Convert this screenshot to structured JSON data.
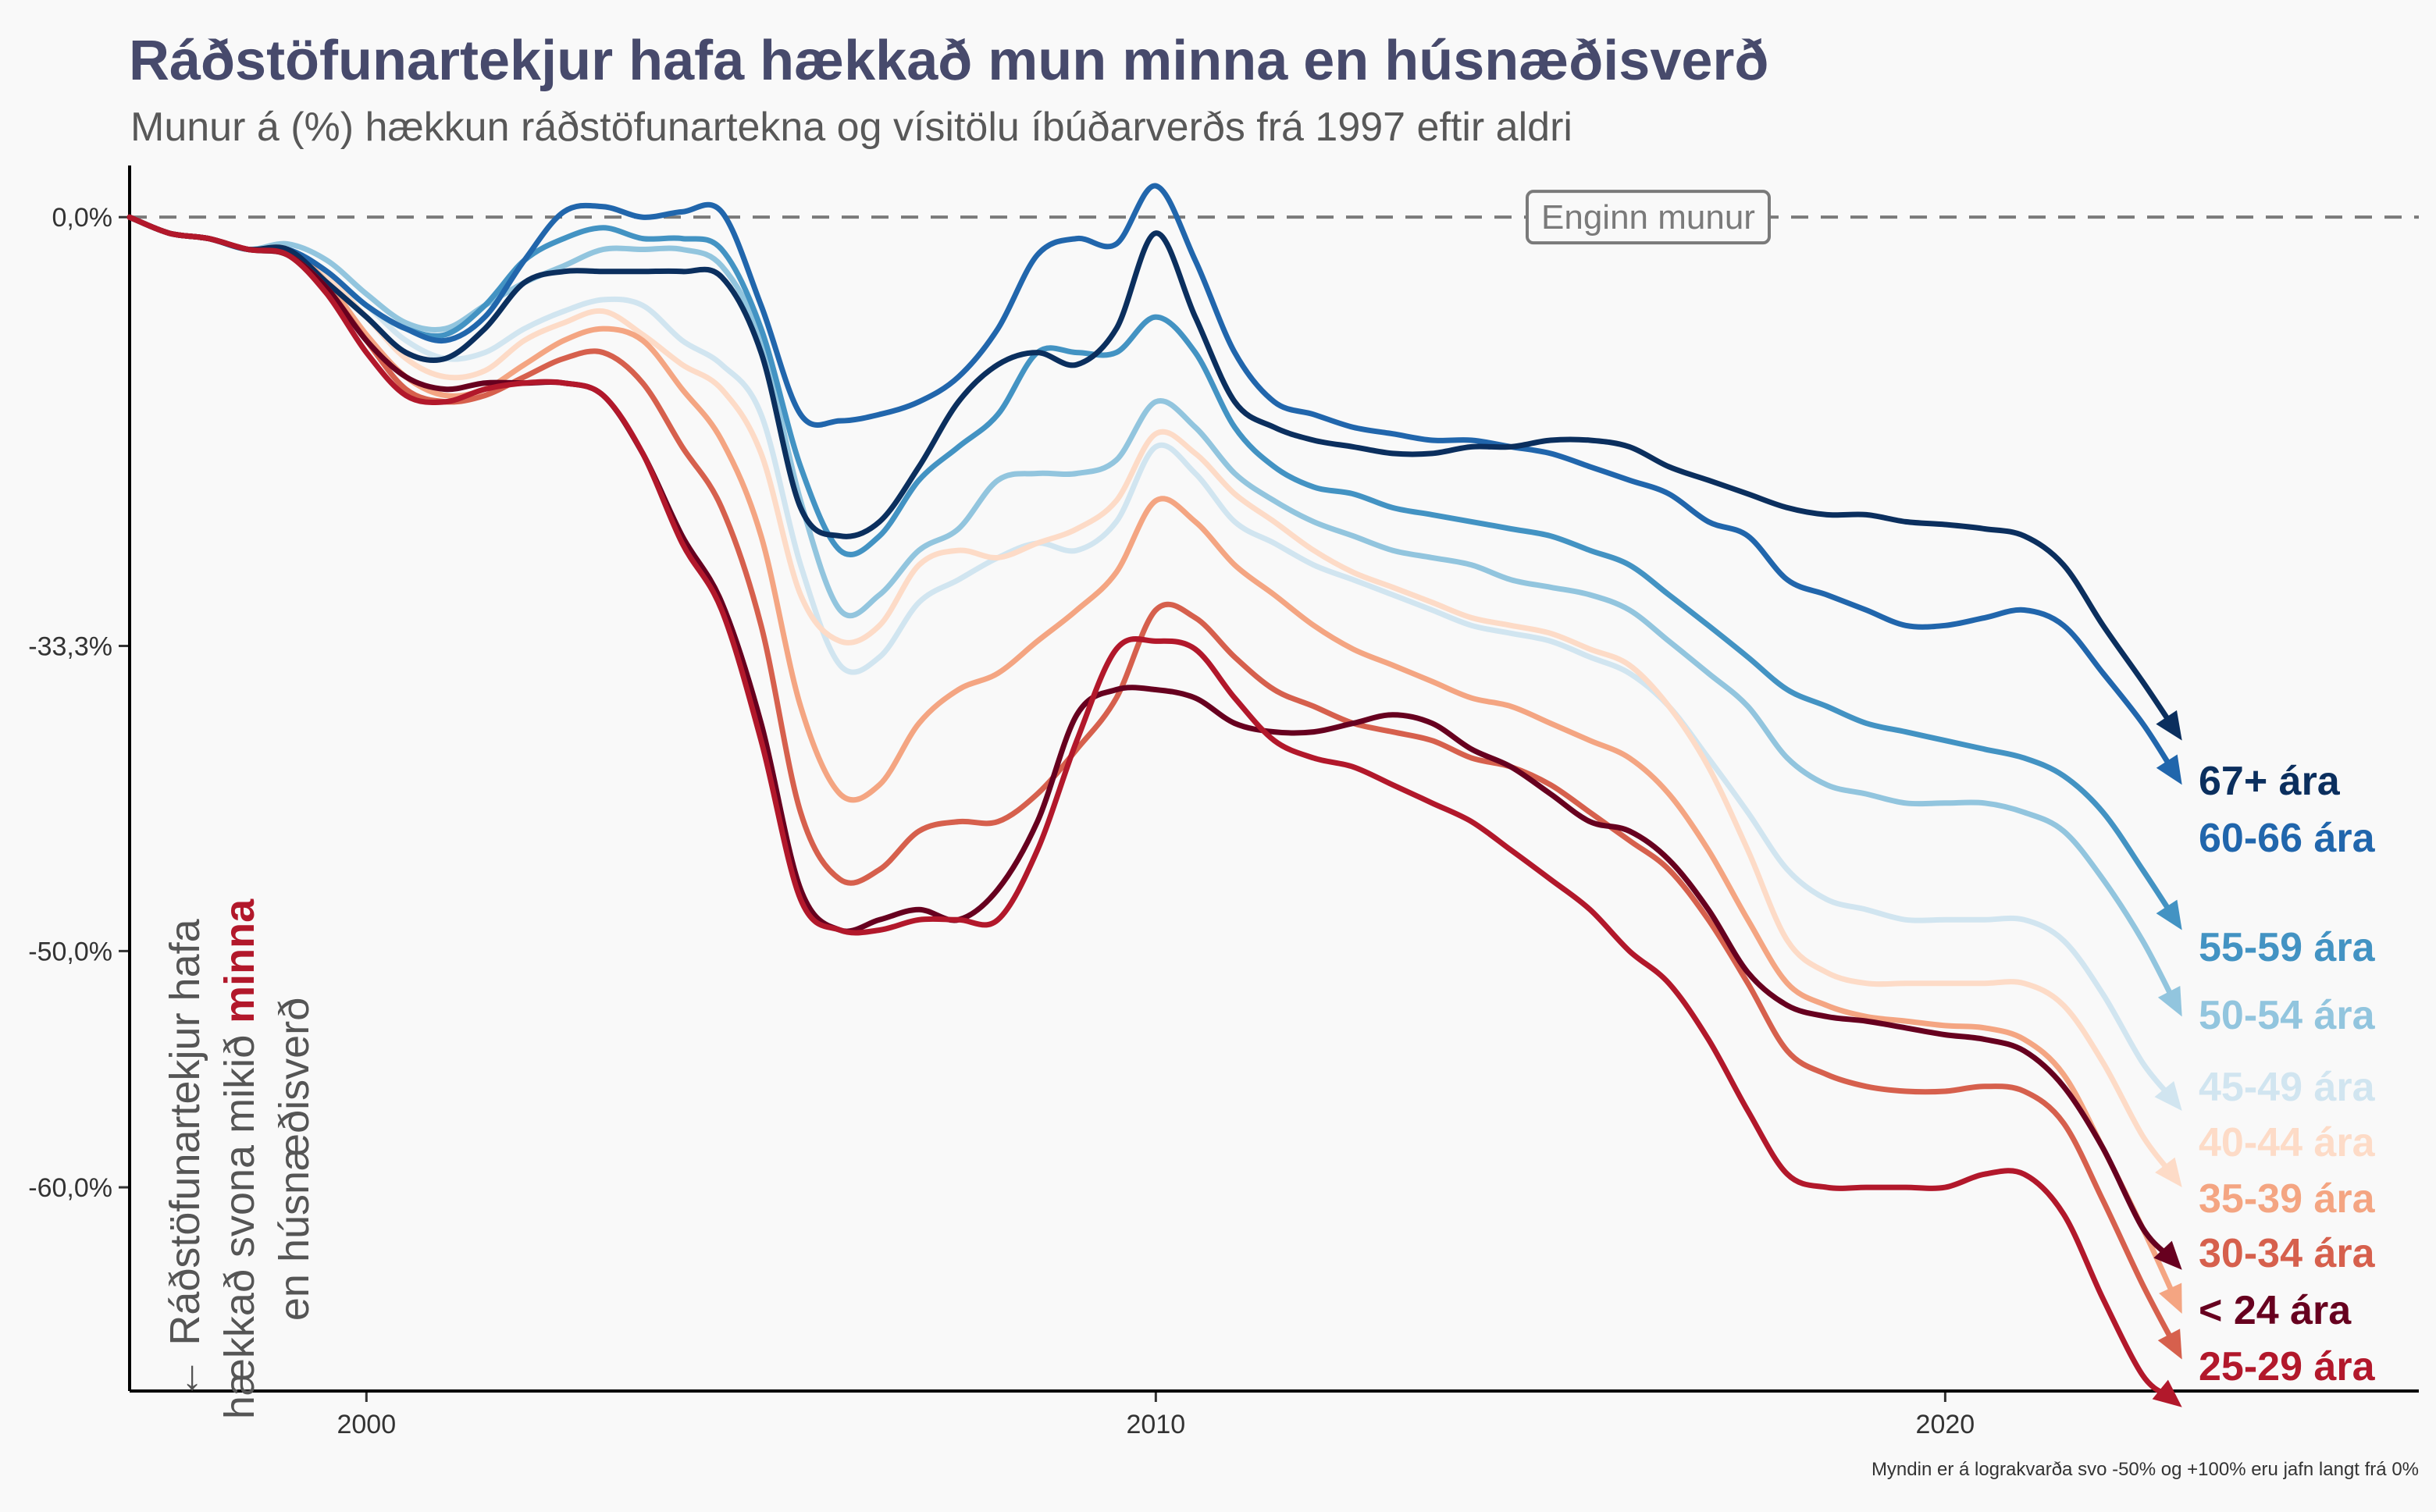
{
  "chart_data": {
    "type": "line",
    "title": "Ráðstöfunartekjur hafa hækkað mun minna en húsnæðisverð",
    "subtitle": "Munur á (%) hækkun ráðstöfunartekna og vísitölu íbúðarverðs frá 1997 eftir aldri",
    "caption": "Myndin er á lograkvarða svo -50% og +100% eru jafn langt frá 0%",
    "xlabel": "",
    "ylabel": "",
    "scale": "log",
    "x_ticks": [
      2000,
      2010,
      2020
    ],
    "y_ticks": [
      {
        "value": 0,
        "label": "0,0%"
      },
      {
        "value": -33.3,
        "label": "-33,3%"
      },
      {
        "value": -50,
        "label": "-50,0%"
      },
      {
        "value": -60,
        "label": "-60,0%"
      }
    ],
    "xlim": [
      1997,
      2026
    ],
    "ylim": [
      -67,
      5
    ],
    "reference_line": {
      "value": 0,
      "label": "Enginn munur"
    },
    "annotation": {
      "line1": "← Ráðstöfunartekjur hafa",
      "line2_a": "hækkað svona mikið ",
      "line2_b": "minna",
      "line3": "en húsnæðisverð"
    },
    "series": [
      {
        "name": "67+ ára",
        "color": "#0b2f5e",
        "x": [
          1997,
          1997.5,
          1998,
          1998.5,
          1999,
          1999.5,
          2000,
          2000.5,
          2001,
          2001.5,
          2002,
          2002.5,
          2003,
          2003.5,
          2004,
          2004.5,
          2005,
          2005.5,
          2006,
          2006.5,
          2007,
          2007.5,
          2008,
          2008.5,
          2009,
          2009.5,
          2010,
          2010.5,
          2011,
          2011.5,
          2012,
          2012.5,
          2013,
          2013.5,
          2014,
          2014.5,
          2015,
          2015.5,
          2016,
          2016.5,
          2017,
          2017.5,
          2018,
          2018.5,
          2019,
          2019.5,
          2020,
          2020.5,
          2021,
          2021.5,
          2022,
          2022.5,
          2023
        ],
        "values": [
          0,
          -1.5,
          -2,
          -3,
          -3,
          -6,
          -9,
          -12,
          -12.5,
          -10,
          -6,
          -5,
          -5,
          -5,
          -5,
          -5.5,
          -12,
          -24,
          -26,
          -25,
          -21,
          -16,
          -13,
          -12,
          -13,
          -10,
          -1.5,
          -9,
          -16,
          -18,
          -19,
          -19.5,
          -20,
          -20,
          -19.5,
          -19.5,
          -19,
          -19,
          -19.5,
          -21,
          -22,
          -23,
          -24,
          -24.5,
          -24.5,
          -25,
          -25.2,
          -25.5,
          -26,
          -28,
          -32,
          -35.5,
          -39
        ]
      },
      {
        "name": "60-66 ára",
        "color": "#2166ac",
        "x": [
          1997,
          1997.5,
          1998,
          1998.5,
          1999,
          1999.5,
          2000,
          2000.5,
          2001,
          2001.5,
          2002,
          2002.5,
          2003,
          2003.5,
          2004,
          2004.5,
          2005,
          2005.5,
          2006,
          2006.5,
          2007,
          2007.5,
          2008,
          2008.5,
          2009,
          2009.5,
          2010,
          2010.5,
          2011,
          2011.5,
          2012,
          2012.5,
          2013,
          2013.5,
          2014,
          2014.5,
          2015,
          2015.5,
          2016,
          2016.5,
          2017,
          2017.5,
          2018,
          2018.5,
          2019,
          2019.5,
          2020,
          2020.5,
          2021,
          2021.5,
          2022,
          2022.5,
          2023
        ],
        "values": [
          0,
          -1.5,
          -2,
          -3,
          -3,
          -5,
          -8,
          -10,
          -11,
          -9,
          -4,
          0.5,
          1,
          0,
          0.5,
          0.5,
          -8,
          -17,
          -17.5,
          -17,
          -16,
          -14,
          -10,
          -3.5,
          -2,
          -2.5,
          3,
          -4,
          -12,
          -16,
          -17,
          -18,
          -18.5,
          -19,
          -19,
          -19.5,
          -20,
          -21,
          -22,
          -23,
          -25,
          -26,
          -29,
          -30,
          -31,
          -32,
          -32,
          -31.5,
          -31,
          -32,
          -35,
          -38,
          -41.5
        ]
      },
      {
        "name": "55-59 ára",
        "color": "#4393c3",
        "x": [
          1997,
          1997.5,
          1998,
          1998.5,
          1999,
          1999.5,
          2000,
          2000.5,
          2001,
          2001.5,
          2002,
          2002.5,
          2003,
          2003.5,
          2004,
          2004.5,
          2005,
          2005.5,
          2006,
          2006.5,
          2007,
          2007.5,
          2008,
          2008.5,
          2009,
          2009.5,
          2010,
          2010.5,
          2011,
          2011.5,
          2012,
          2012.5,
          2013,
          2013.5,
          2014,
          2014.5,
          2015,
          2015.5,
          2016,
          2016.5,
          2017,
          2017.5,
          2018,
          2018.5,
          2019,
          2019.5,
          2020,
          2020.5,
          2021,
          2021.5,
          2022,
          2022.5,
          2023
        ],
        "values": [
          0,
          -1.5,
          -2,
          -3,
          -3,
          -5,
          -8,
          -10,
          -10.5,
          -8,
          -4,
          -2,
          -1,
          -2,
          -2,
          -3,
          -10,
          -21,
          -27,
          -26,
          -22,
          -19.5,
          -17,
          -12,
          -12,
          -12,
          -9,
          -12,
          -18,
          -21,
          -22.5,
          -23,
          -24,
          -24.5,
          -25,
          -25.5,
          -26,
          -27,
          -28,
          -30,
          -32,
          -34,
          -36,
          -37,
          -38,
          -38.5,
          -39,
          -39.5,
          -40,
          -41,
          -43,
          -46,
          -49
        ]
      },
      {
        "name": "50-54 ára",
        "color": "#92c5de",
        "x": [
          1997,
          1997.5,
          1998,
          1998.5,
          1999,
          1999.5,
          2000,
          2000.5,
          2001,
          2001.5,
          2002,
          2002.5,
          2003,
          2003.5,
          2004,
          2004.5,
          2005,
          2005.5,
          2006,
          2006.5,
          2007,
          2007.5,
          2008,
          2008.5,
          2009,
          2009.5,
          2010,
          2010.5,
          2011,
          2011.5,
          2012,
          2012.5,
          2013,
          2013.5,
          2014,
          2014.5,
          2015,
          2015.5,
          2016,
          2016.5,
          2017,
          2017.5,
          2018,
          2018.5,
          2019,
          2019.5,
          2020,
          2020.5,
          2021,
          2021.5,
          2022,
          2022.5,
          2023
        ],
        "values": [
          0,
          -1.5,
          -2,
          -3,
          -2.5,
          -4,
          -7,
          -9.5,
          -10,
          -8,
          -6,
          -4.5,
          -3,
          -3,
          -3,
          -4.5,
          -11,
          -23.5,
          -31,
          -30,
          -27,
          -25.5,
          -22,
          -21.5,
          -21.5,
          -20.5,
          -16,
          -18,
          -21.5,
          -23.5,
          -25,
          -26,
          -27,
          -27.5,
          -28,
          -29,
          -29.5,
          -30,
          -31,
          -33,
          -35,
          -37,
          -40,
          -41.5,
          -42,
          -42.5,
          -42.5,
          -42.5,
          -43,
          -44,
          -46.5,
          -49.5,
          -53
        ]
      },
      {
        "name": "45-49 ára",
        "color": "#d1e5f0",
        "x": [
          1997,
          1997.5,
          1998,
          1998.5,
          1999,
          1999.5,
          2000,
          2000.5,
          2001,
          2001.5,
          2002,
          2002.5,
          2003,
          2003.5,
          2004,
          2004.5,
          2005,
          2005.5,
          2006,
          2006.5,
          2007,
          2007.5,
          2008,
          2008.5,
          2009,
          2009.5,
          2010,
          2010.5,
          2011,
          2011.5,
          2012,
          2012.5,
          2013,
          2013.5,
          2014,
          2014.5,
          2015,
          2015.5,
          2016,
          2016.5,
          2017,
          2017.5,
          2018,
          2018.5,
          2019,
          2019.5,
          2020,
          2020.5,
          2021,
          2021.5,
          2022,
          2022.5,
          2023
        ],
        "values": [
          0,
          -1.5,
          -2,
          -3,
          -3,
          -5.5,
          -8,
          -11,
          -12.5,
          -12,
          -10,
          -8.5,
          -7.5,
          -8,
          -11,
          -13,
          -17,
          -28,
          -34.5,
          -34,
          -30.5,
          -29,
          -27.5,
          -26.5,
          -27,
          -25,
          -19.5,
          -21.5,
          -25,
          -26.5,
          -28,
          -29,
          -30,
          -31,
          -32,
          -32.5,
          -33,
          -34,
          -35,
          -37,
          -40,
          -43,
          -46,
          -47.5,
          -48,
          -48.5,
          -48.5,
          -48.5,
          -48.5,
          -49.5,
          -52,
          -55,
          -57
        ]
      },
      {
        "name": "40-44 ára",
        "color": "#fddbc7",
        "x": [
          1997,
          1997.5,
          1998,
          1998.5,
          1999,
          1999.5,
          2000,
          2000.5,
          2001,
          2001.5,
          2002,
          2002.5,
          2003,
          2003.5,
          2004,
          2004.5,
          2005,
          2005.5,
          2006,
          2006.5,
          2007,
          2007.5,
          2008,
          2008.5,
          2009,
          2009.5,
          2010,
          2010.5,
          2011,
          2011.5,
          2012,
          2012.5,
          2013,
          2013.5,
          2014,
          2014.5,
          2015,
          2015.5,
          2016,
          2016.5,
          2017,
          2017.5,
          2018,
          2018.5,
          2019,
          2019.5,
          2020,
          2020.5,
          2021,
          2021.5,
          2022,
          2022.5,
          2023
        ],
        "values": [
          0,
          -1.5,
          -2,
          -3,
          -3,
          -5.5,
          -9,
          -12.5,
          -14,
          -13.5,
          -11,
          -9.5,
          -8.5,
          -10.5,
          -13,
          -15,
          -20,
          -30,
          -33,
          -32,
          -28,
          -27,
          -27.5,
          -26.5,
          -25.5,
          -23.5,
          -18.5,
          -20,
          -23,
          -25,
          -27,
          -28.5,
          -29.5,
          -30.5,
          -31.5,
          -32,
          -32.5,
          -33.5,
          -34.5,
          -37,
          -40.5,
          -45,
          -49.5,
          -51,
          -51.5,
          -51.5,
          -51.5,
          -51.5,
          -51.5,
          -52.5,
          -55,
          -58,
          -60
        ]
      },
      {
        "name": "35-39 ára",
        "color": "#f4a582",
        "x": [
          1997,
          1997.5,
          1998,
          1998.5,
          1999,
          1999.5,
          2000,
          2000.5,
          2001,
          2001.5,
          2002,
          2002.5,
          2003,
          2003.5,
          2004,
          2004.5,
          2005,
          2005.5,
          2006,
          2006.5,
          2007,
          2007.5,
          2008,
          2008.5,
          2009,
          2009.5,
          2010,
          2010.5,
          2011,
          2011.5,
          2012,
          2012.5,
          2013,
          2013.5,
          2014,
          2014.5,
          2015,
          2015.5,
          2016,
          2016.5,
          2017,
          2017.5,
          2018,
          2018.5,
          2019,
          2019.5,
          2020,
          2020.5,
          2021,
          2021.5,
          2022,
          2022.5,
          2023
        ],
        "values": [
          0,
          -1.5,
          -2,
          -3,
          -3,
          -6,
          -10.5,
          -14,
          -15.5,
          -15,
          -13,
          -11,
          -10,
          -11,
          -15,
          -19,
          -26,
          -37,
          -42,
          -41.5,
          -38,
          -36,
          -35,
          -33,
          -31,
          -28.5,
          -23.5,
          -25,
          -28,
          -30,
          -32,
          -33.5,
          -34.5,
          -35.5,
          -36.5,
          -37,
          -38,
          -39,
          -40,
          -42,
          -45,
          -48.5,
          -51.5,
          -52.5,
          -53,
          -53.2,
          -53.4,
          -53.5,
          -54,
          -55.5,
          -58.5,
          -61.5,
          -64.5
        ]
      },
      {
        "name": "30-34 ára",
        "color": "#d6604d",
        "x": [
          1997,
          1997.5,
          1998,
          1998.5,
          1999,
          1999.5,
          2000,
          2000.5,
          2001,
          2001.5,
          2002,
          2002.5,
          2003,
          2003.5,
          2004,
          2004.5,
          2005,
          2005.5,
          2006,
          2006.5,
          2007,
          2007.5,
          2008,
          2008.5,
          2009,
          2009.5,
          2010,
          2010.5,
          2011,
          2011.5,
          2012,
          2012.5,
          2013,
          2013.5,
          2014,
          2014.5,
          2015,
          2015.5,
          2016,
          2016.5,
          2017,
          2017.5,
          2018,
          2018.5,
          2019,
          2019.5,
          2020,
          2020.5,
          2021,
          2021.5,
          2022,
          2022.5,
          2023
        ],
        "values": [
          0,
          -1.5,
          -2,
          -3,
          -3.5,
          -6.5,
          -11,
          -15,
          -16,
          -15.5,
          -14,
          -12.5,
          -12,
          -14.5,
          -19.5,
          -24,
          -32,
          -43,
          -46.5,
          -46,
          -44,
          -43.5,
          -43.5,
          -42,
          -39.5,
          -36.5,
          -31,
          -31.5,
          -34,
          -36,
          -37,
          -38,
          -38.5,
          -39,
          -40,
          -40.5,
          -41.5,
          -43,
          -44.5,
          -46,
          -48.5,
          -51.5,
          -54.5,
          -55.5,
          -56,
          -56.2,
          -56.2,
          -56,
          -56.2,
          -57.5,
          -60.5,
          -63.5,
          -66
        ]
      },
      {
        "name": "< 24 ára",
        "color": "#67001f",
        "x": [
          1997,
          1997.5,
          1998,
          1998.5,
          1999,
          1999.5,
          2000,
          2000.5,
          2001,
          2001.5,
          2002,
          2002.5,
          2003,
          2003.5,
          2004,
          2004.5,
          2005,
          2005.5,
          2006,
          2006.5,
          2007,
          2007.5,
          2008,
          2008.5,
          2009,
          2009.5,
          2010,
          2010.5,
          2011,
          2011.5,
          2012,
          2012.5,
          2013,
          2013.5,
          2014,
          2014.5,
          2015,
          2015.5,
          2016,
          2016.5,
          2017,
          2017.5,
          2018,
          2018.5,
          2019,
          2019.5,
          2020,
          2020.5,
          2021,
          2021.5,
          2022,
          2022.5,
          2023
        ],
        "values": [
          0,
          -1.5,
          -2,
          -3,
          -3.5,
          -6.5,
          -11,
          -14,
          -15,
          -14.5,
          -14.5,
          -14.5,
          -15.5,
          -20,
          -26,
          -30.5,
          -38,
          -47,
          -49,
          -48.5,
          -48,
          -48.5,
          -47,
          -43.5,
          -37.5,
          -36,
          -36,
          -36.5,
          -38,
          -38.5,
          -38.5,
          -38,
          -37.5,
          -38,
          -39.5,
          -40.5,
          -42,
          -43.5,
          -44,
          -45.5,
          -48,
          -51,
          -52.5,
          -53,
          -53.2,
          -53.5,
          -53.8,
          -54,
          -54.5,
          -56,
          -58.5,
          -61.5,
          -63
        ]
      },
      {
        "name": "25-29 ára",
        "color": "#b2182b",
        "x": [
          1997,
          1997.5,
          1998,
          1998.5,
          1999,
          1999.5,
          2000,
          2000.5,
          2001,
          2001.5,
          2002,
          2002.5,
          2003,
          2003.5,
          2004,
          2004.5,
          2005,
          2005.5,
          2006,
          2006.5,
          2007,
          2007.5,
          2008,
          2008.5,
          2009,
          2009.5,
          2010,
          2010.5,
          2011,
          2011.5,
          2012,
          2012.5,
          2013,
          2013.5,
          2014,
          2014.5,
          2015,
          2015.5,
          2016,
          2016.5,
          2017,
          2017.5,
          2018,
          2018.5,
          2019,
          2019.5,
          2020,
          2020.5,
          2021,
          2021.5,
          2022,
          2022.5,
          2023
        ],
        "values": [
          0,
          -1.5,
          -2,
          -3,
          -3.5,
          -7,
          -12,
          -15.5,
          -16,
          -15,
          -14.5,
          -14.5,
          -15.5,
          -20,
          -26.5,
          -31,
          -39,
          -47.5,
          -49,
          -49,
          -48.5,
          -48.5,
          -48.5,
          -45,
          -39,
          -33.5,
          -33,
          -33.5,
          -36.5,
          -39,
          -40,
          -40.5,
          -41.5,
          -42.5,
          -43.5,
          -45,
          -46.5,
          -48,
          -50,
          -51.5,
          -54,
          -57,
          -59.5,
          -60,
          -60,
          -60,
          -60,
          -59.5,
          -59.5,
          -61,
          -64,
          -66.5,
          -67.5
        ]
      }
    ]
  }
}
